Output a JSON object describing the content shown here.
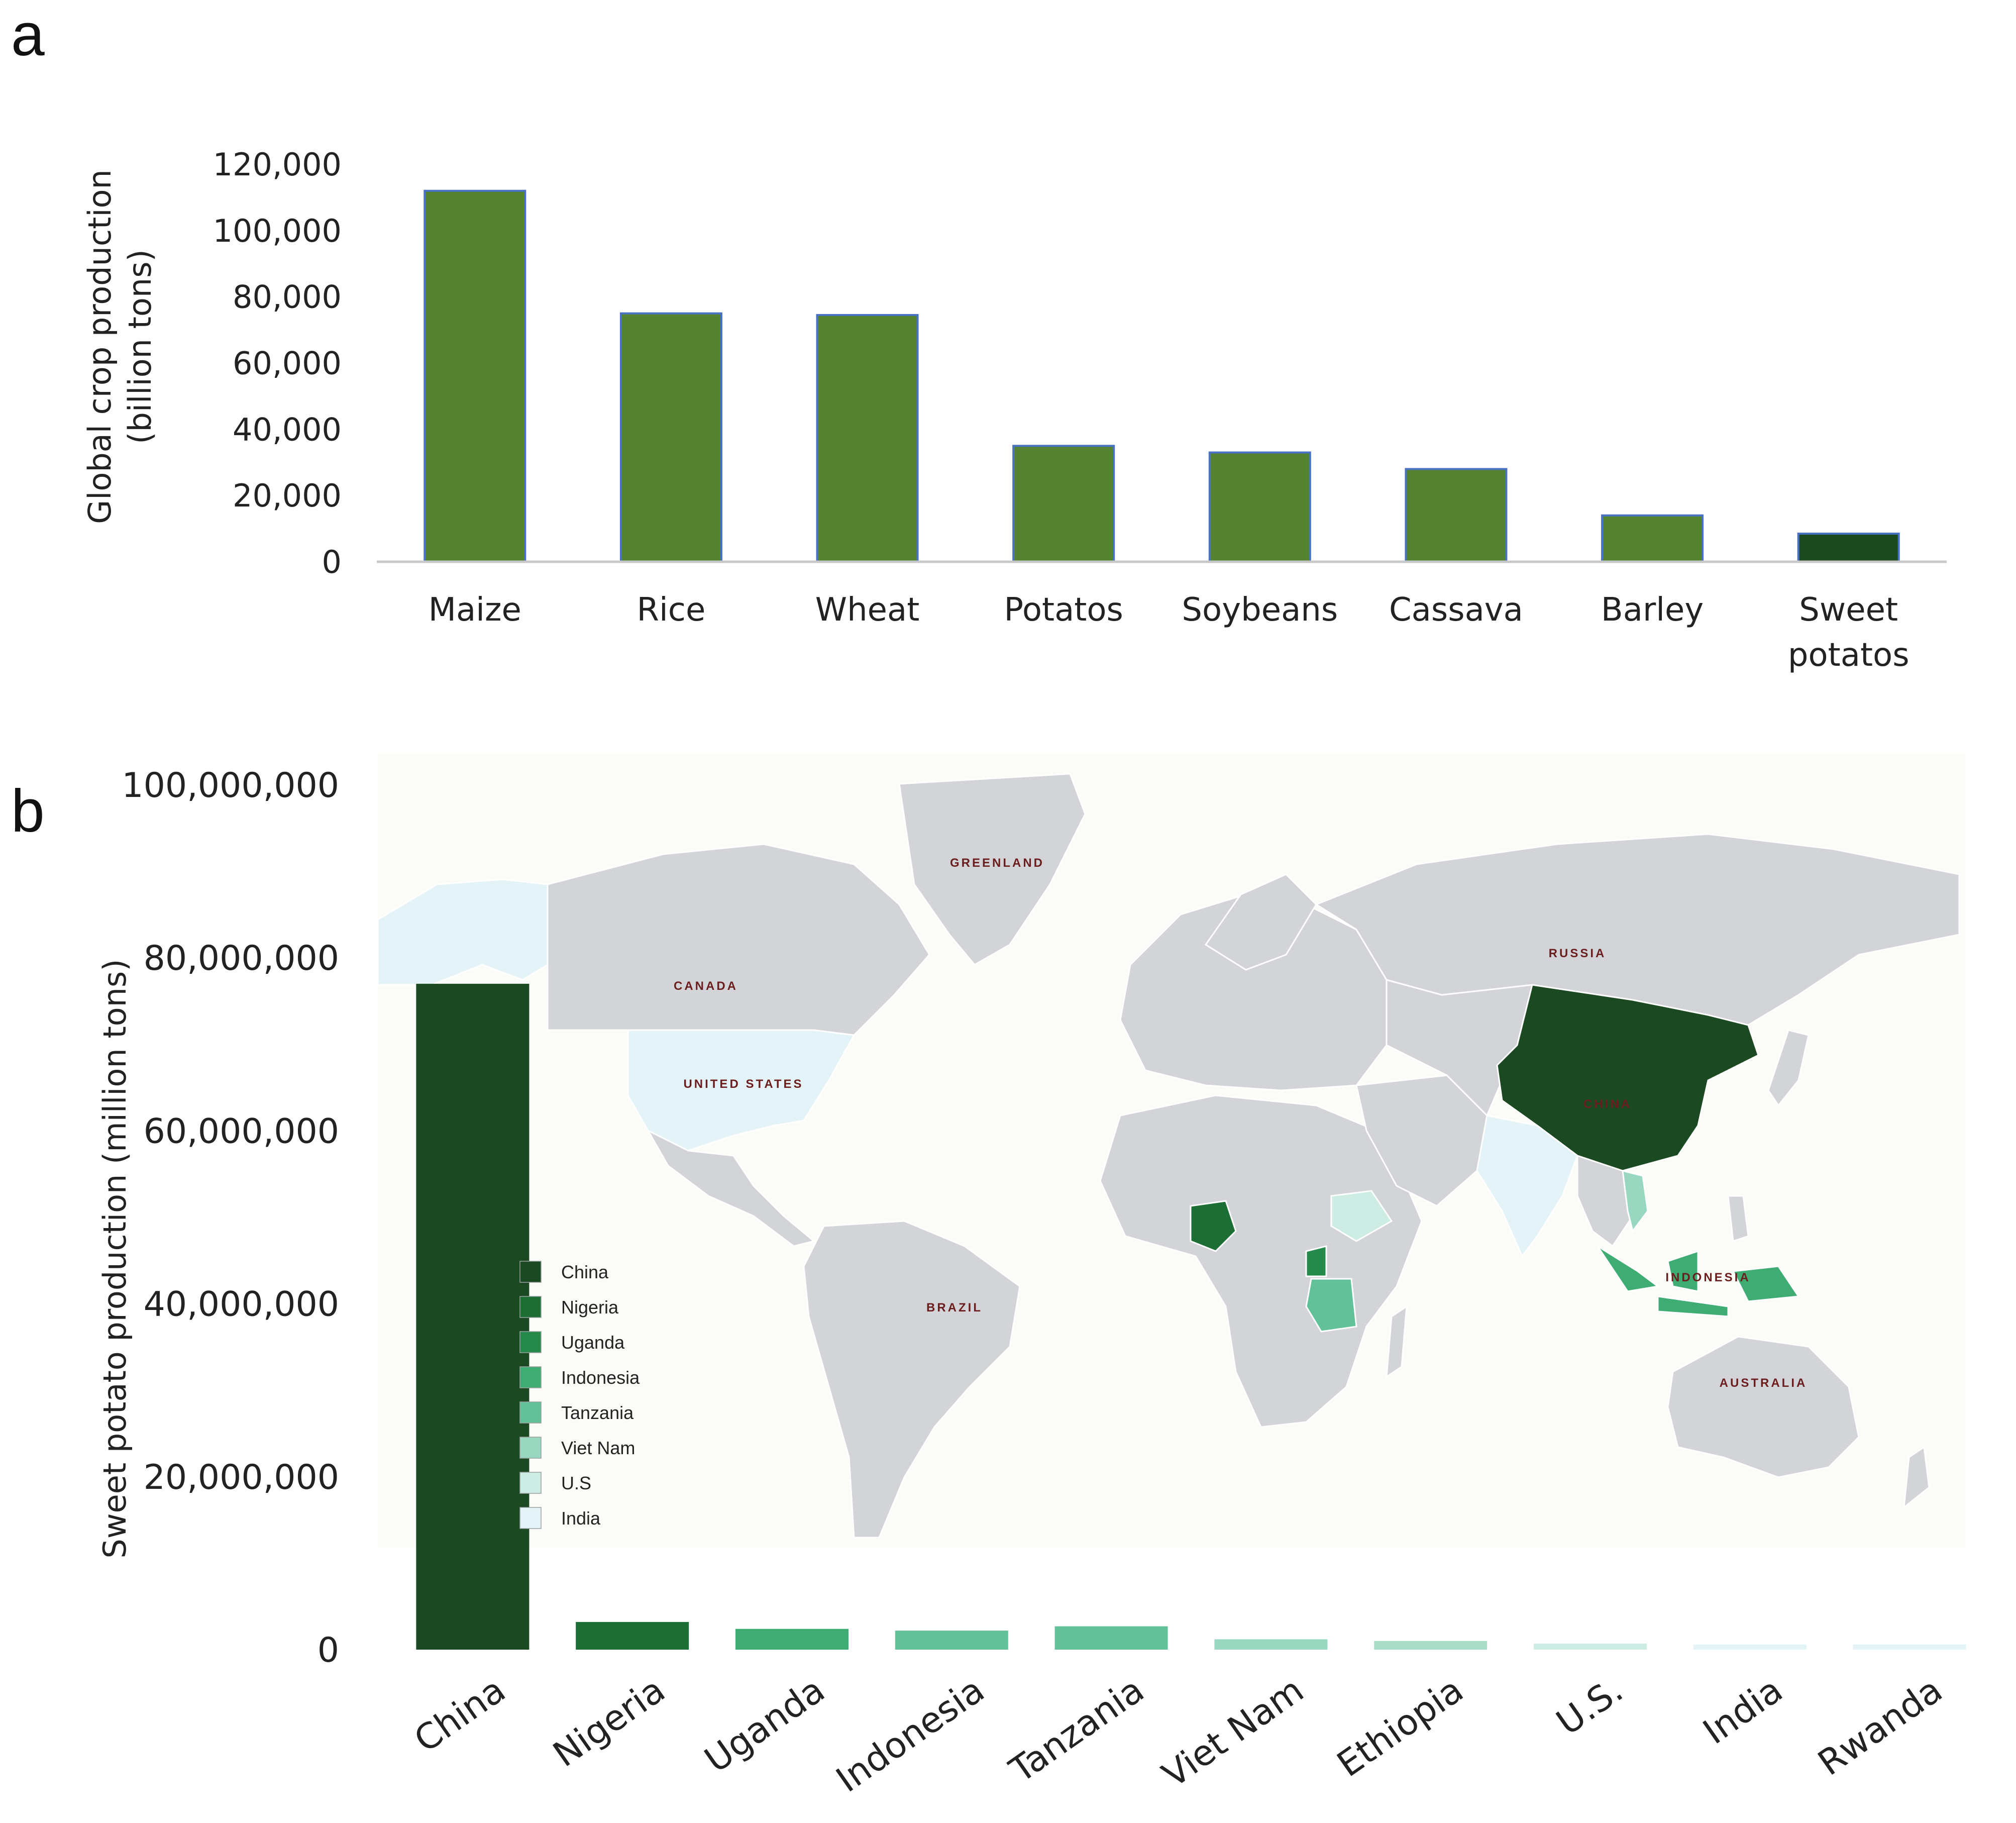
{
  "panels": {
    "a": {
      "letter": "a"
    },
    "b": {
      "letter": "b"
    }
  },
  "map": {
    "labels": {
      "greenland": "GREENLAND",
      "canada": "CANADA",
      "united_states": "UNITED STATES",
      "russia": "RUSSIA",
      "china": "CHINA",
      "brazil": "BRAZIL",
      "australia": "AUSTRALIA",
      "indonesia": "INDONESIA"
    },
    "colors": {
      "land": "#d2d4d8",
      "ocean": "#fbfbf8",
      "China": "#1b4a22",
      "Nigeria": "#1d6e34",
      "Uganda": "#24894a",
      "Indonesia": "#3fac74",
      "Tanzania": "#63c19a",
      "Viet Nam": "#9ad7c0",
      "U.S": "#cdece4",
      "India": "#e4f3f7"
    },
    "legend": [
      "China",
      "Nigeria",
      "Uganda",
      "Indonesia",
      "Tanzania",
      "Viet Nam",
      "U.S",
      "India"
    ]
  },
  "chart_data": [
    {
      "type": "bar",
      "panel": "a",
      "categories": [
        "Maize",
        "Rice",
        "Wheat",
        "Potatos",
        "Soybeans",
        "Cassava",
        "Barley",
        "Sweet\npotatos"
      ],
      "values": [
        112000,
        75000,
        74500,
        35000,
        33000,
        28000,
        14000,
        8500
      ],
      "colors": [
        "#55832f",
        "#55832f",
        "#55832f",
        "#55832f",
        "#55832f",
        "#55832f",
        "#55832f",
        "#1c4a20"
      ],
      "edge_color": "#4a72c4",
      "ylabel": "Global crop production\n(billion tons)",
      "ylim": [
        0,
        120000
      ],
      "yticks": [
        0,
        20000,
        40000,
        60000,
        80000,
        100000,
        120000
      ],
      "ytick_labels": [
        "0",
        "20,000",
        "40,000",
        "60,000",
        "80,000",
        "100,000",
        "120,000"
      ],
      "grid": false
    },
    {
      "type": "bar",
      "panel": "b",
      "categories": [
        "China",
        "Nigeria",
        "Uganda",
        "Indonesia",
        "Tanzania",
        "Viet Nam",
        "Ethiopia",
        "U.S.",
        "India",
        "Rwanda"
      ],
      "values": [
        77000000,
        3200000,
        2400000,
        2200000,
        2700000,
        1200000,
        1000000,
        700000,
        600000,
        600000
      ],
      "colors": [
        "#1b4a22",
        "#1d6e34",
        "#3fac74",
        "#63c19a",
        "#63c19a",
        "#9ad7c0",
        "#a9ddc8",
        "#cdece4",
        "#e4f3f7",
        "#e4f3f7"
      ],
      "ylabel": "Sweet potato production (million tons)",
      "ylim": [
        0,
        100000000
      ],
      "yticks": [
        0,
        20000000,
        40000000,
        60000000,
        80000000,
        100000000
      ],
      "ytick_labels": [
        "0",
        "20,000,000",
        "40,000,000",
        "60,000,000",
        "80,000,000",
        "100,000,000"
      ],
      "grid": false,
      "legend": "left-inside-map"
    }
  ]
}
